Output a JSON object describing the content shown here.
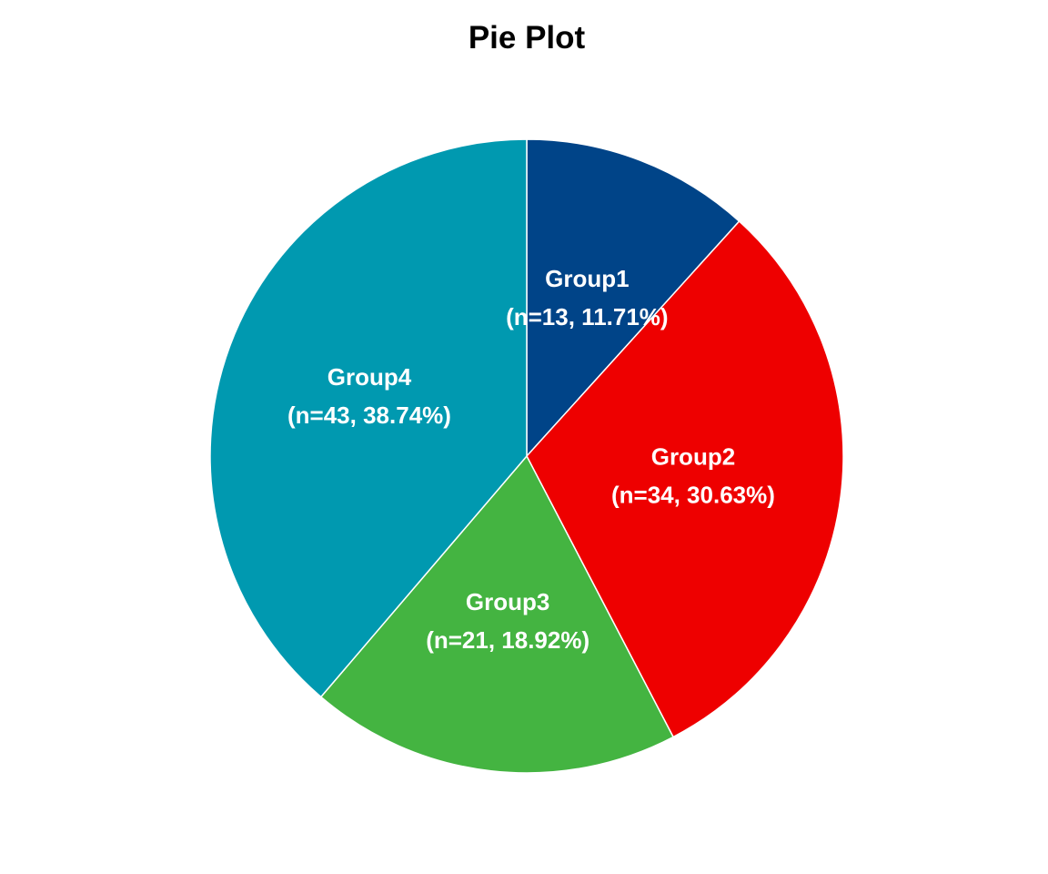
{
  "chart_data": {
    "type": "pie",
    "title": "Pie Plot",
    "slices": [
      {
        "label": "Group1",
        "n": 13,
        "percent_label": "(n=13, 11.71%)",
        "value": 13,
        "color": "#004488"
      },
      {
        "label": "Group2",
        "n": 34,
        "percent_label": "(n=34, 30.63%)",
        "value": 34,
        "color": "#EE0000"
      },
      {
        "label": "Group3",
        "n": 21,
        "percent_label": "(n=21, 18.92%)",
        "value": 21,
        "color": "#44B441"
      },
      {
        "label": "Group4",
        "n": 43,
        "percent_label": "(n=43, 38.74%)",
        "value": 43,
        "color": "#0099B0"
      }
    ],
    "start": "12 o'clock",
    "direction": "clockwise",
    "slice_border_color": "#ffffff",
    "legend": "none"
  }
}
